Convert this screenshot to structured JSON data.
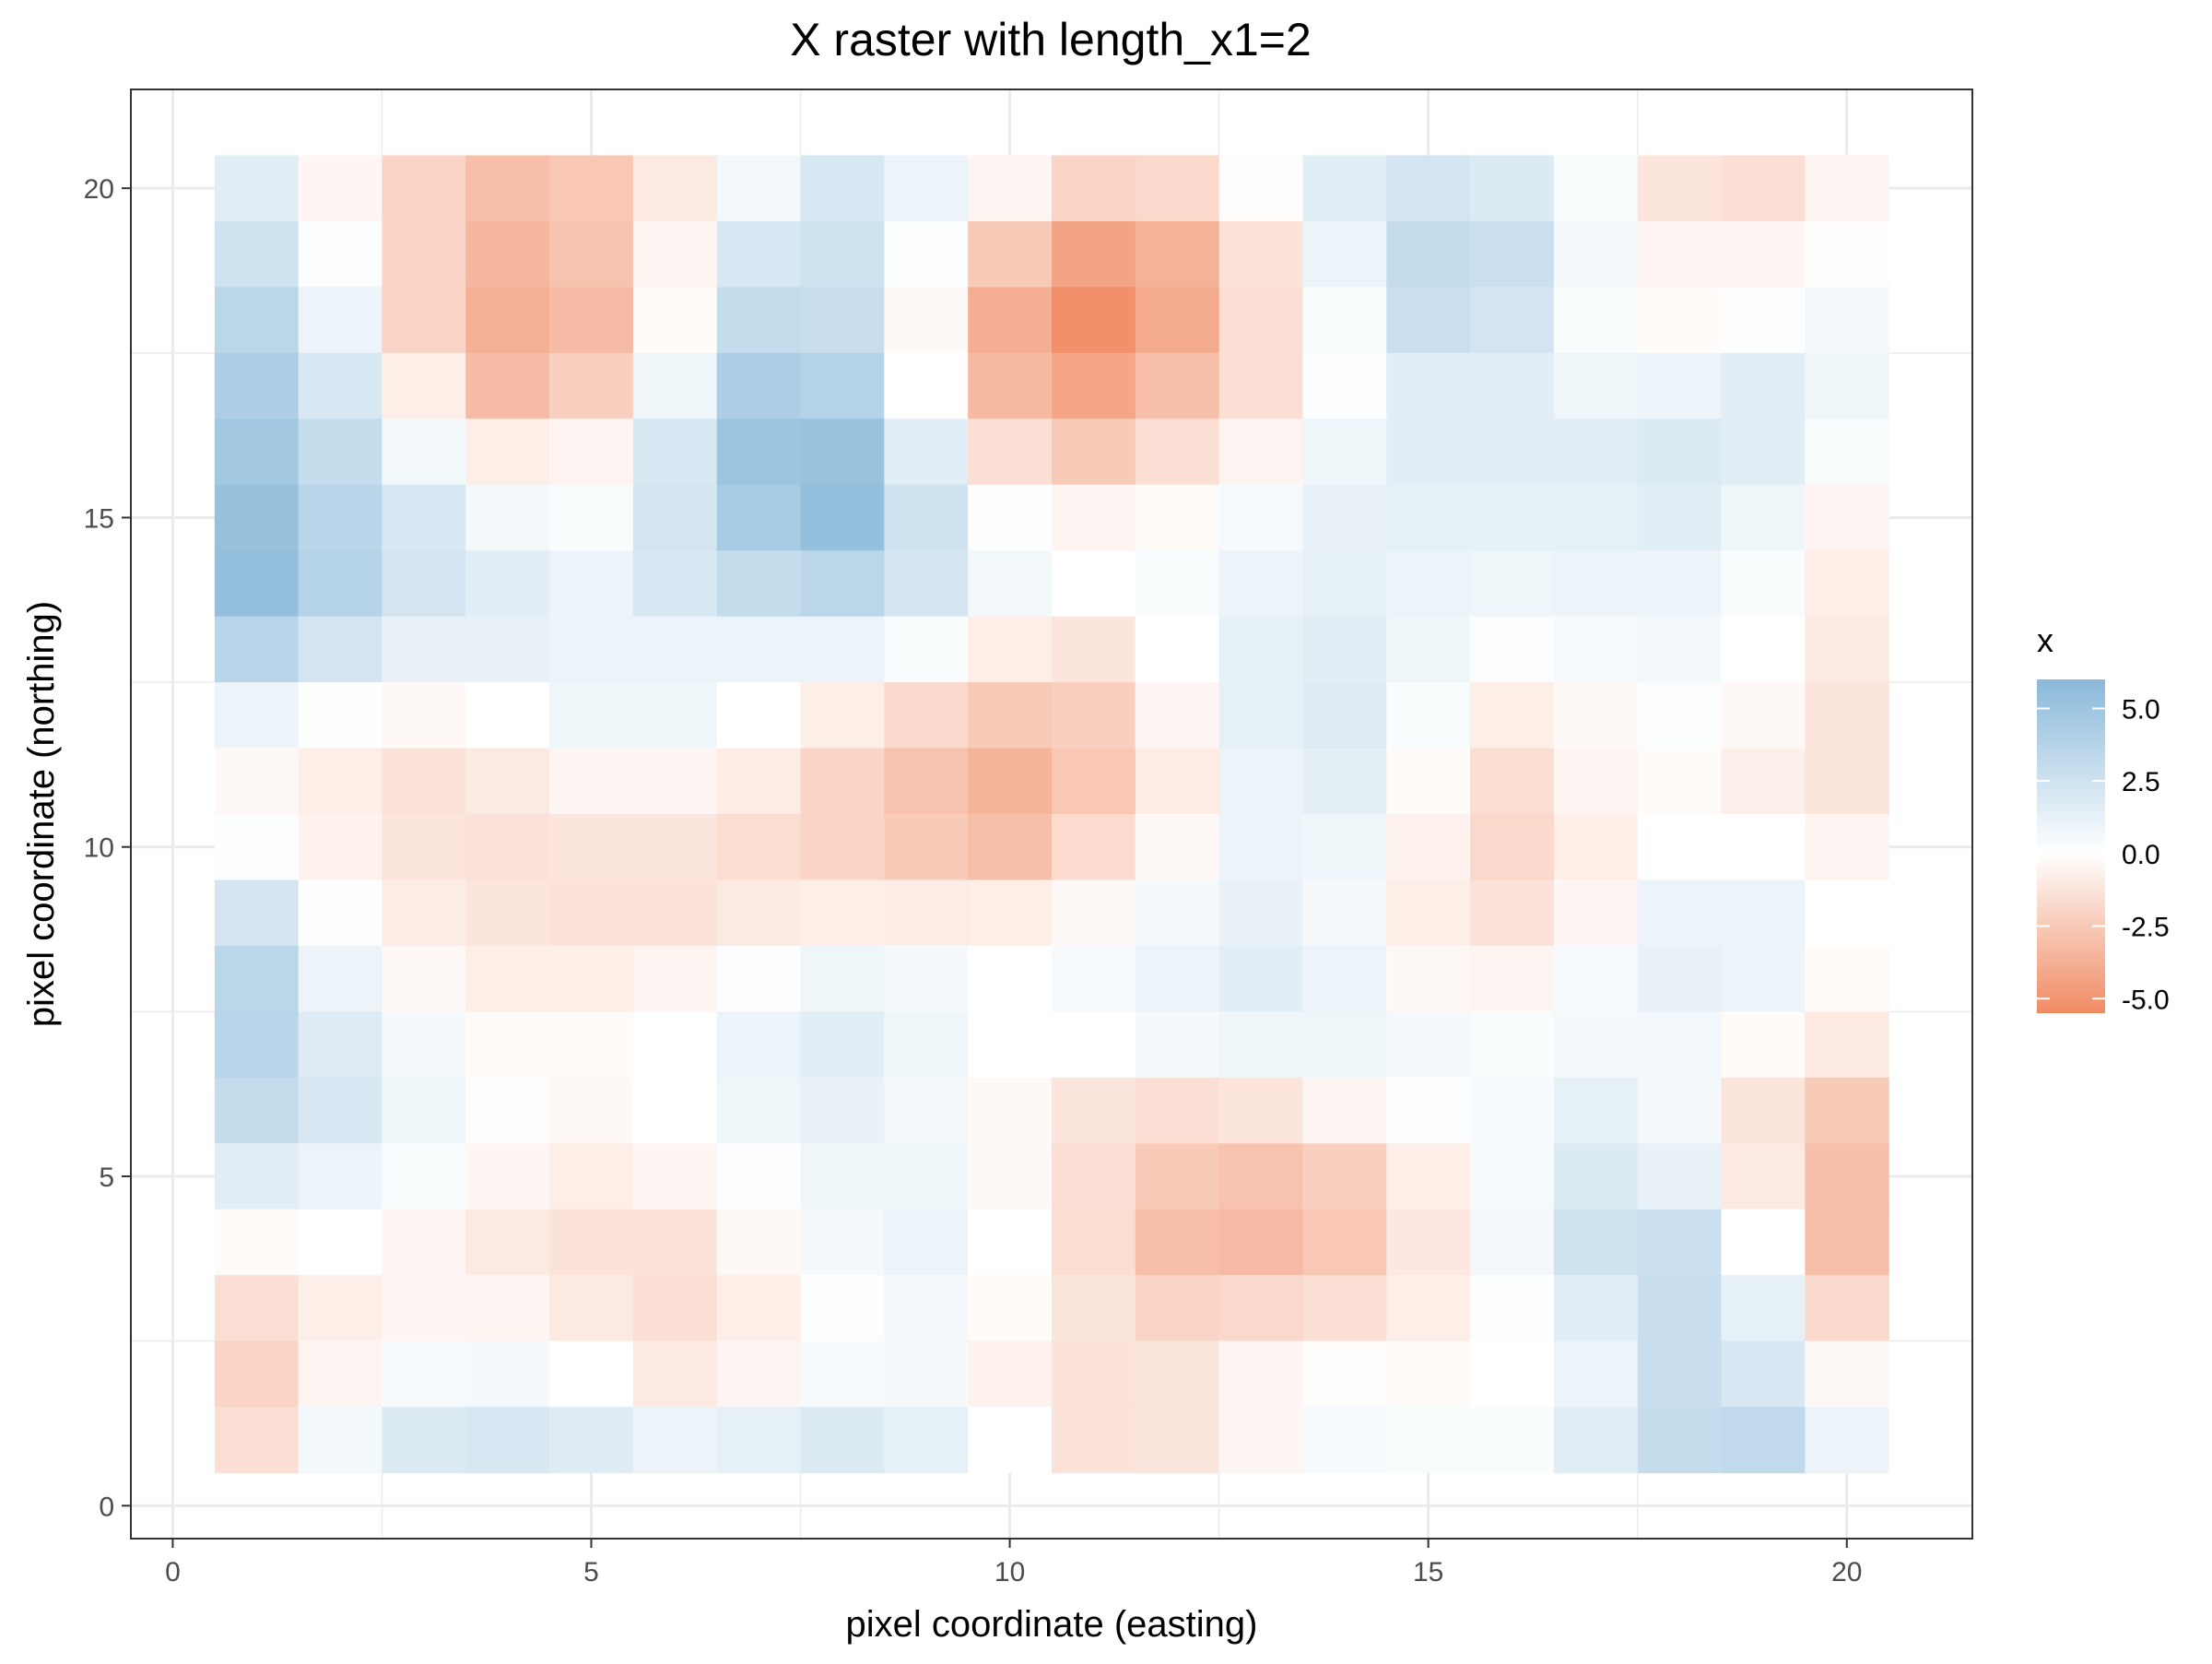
{
  "chart_data": {
    "type": "heatmap",
    "title": "X raster with length_x1=2",
    "xlabel": "pixel coordinate (easting)",
    "ylabel": "pixel coordinate (northing)",
    "xlim": [
      -0.5,
      21.5
    ],
    "ylim": [
      -0.5,
      21.5
    ],
    "xticks": [
      0,
      5,
      10,
      15,
      20
    ],
    "xtick_labels": [
      "0",
      "5",
      "10",
      "15",
      "20"
    ],
    "yticks": [
      0,
      5,
      10,
      15,
      20
    ],
    "ytick_labels": [
      "0",
      "5",
      "10",
      "15",
      "20"
    ],
    "grid": true,
    "x": [
      1,
      2,
      3,
      4,
      5,
      6,
      7,
      8,
      9,
      10,
      11,
      12,
      13,
      14,
      15,
      16,
      17,
      18,
      19,
      20
    ],
    "y": [
      1,
      2,
      3,
      4,
      5,
      6,
      7,
      8,
      9,
      10,
      11,
      12,
      13,
      14,
      15,
      16,
      17,
      18,
      19,
      20
    ],
    "z_rows_by_y_desc": [
      [
        1.5,
        -0.4,
        -2.0,
        -3.0,
        -2.6,
        -1.0,
        0.6,
        2.0,
        1.0,
        -0.5,
        -2.0,
        -1.8,
        -0.1,
        1.5,
        2.2,
        1.8,
        0.3,
        -1.2,
        -1.5,
        -0.5
      ],
      [
        2.5,
        0.2,
        -2.0,
        -3.4,
        -2.8,
        -0.5,
        2.0,
        2.5,
        0.2,
        -2.5,
        -4.3,
        -3.6,
        -1.3,
        1.0,
        3.0,
        2.7,
        0.6,
        -0.5,
        -0.5,
        -0.1
      ],
      [
        3.5,
        1.0,
        -2.0,
        -3.7,
        -3.2,
        -0.2,
        3.0,
        2.8,
        -0.3,
        -3.8,
        -5.2,
        -4.0,
        -1.5,
        0.3,
        2.7,
        2.2,
        0.3,
        -0.2,
        0.2,
        0.6
      ],
      [
        4.2,
        2.0,
        -0.8,
        -3.2,
        -2.2,
        0.8,
        4.2,
        3.8,
        -0.0,
        -3.3,
        -4.2,
        -3.0,
        -1.5,
        0.2,
        1.5,
        1.5,
        0.8,
        1.0,
        1.5,
        0.8
      ],
      [
        4.8,
        3.0,
        0.6,
        -0.8,
        -0.5,
        2.0,
        5.0,
        5.2,
        1.5,
        -1.5,
        -2.5,
        -1.5,
        -0.5,
        0.8,
        1.5,
        1.5,
        1.5,
        1.8,
        1.5,
        0.3
      ],
      [
        5.3,
        3.6,
        2.0,
        0.6,
        0.3,
        2.2,
        4.5,
        5.5,
        2.5,
        0.2,
        -0.5,
        -0.2,
        0.4,
        1.2,
        1.3,
        1.3,
        1.3,
        1.5,
        0.8,
        -0.5
      ],
      [
        5.5,
        3.8,
        2.2,
        1.5,
        1.0,
        2.0,
        3.0,
        3.5,
        2.2,
        0.6,
        0.0,
        0.3,
        1.0,
        1.3,
        1.0,
        0.8,
        1.0,
        1.0,
        0.3,
        -0.8
      ],
      [
        3.6,
        2.2,
        1.2,
        1.2,
        1.0,
        1.0,
        1.0,
        1.0,
        0.3,
        -0.8,
        -1.2,
        0.0,
        1.3,
        1.5,
        0.8,
        0.2,
        0.4,
        0.6,
        0.0,
        -1.0
      ],
      [
        1.0,
        0.1,
        -0.3,
        0.0,
        0.8,
        0.8,
        0.0,
        -0.8,
        -1.8,
        -2.5,
        -2.2,
        -0.4,
        1.3,
        1.7,
        0.3,
        -0.8,
        -0.3,
        0.2,
        -0.3,
        -1.2
      ],
      [
        -0.3,
        -0.8,
        -1.3,
        -1.0,
        -0.4,
        -0.4,
        -0.9,
        -2.0,
        -2.8,
        -3.5,
        -2.6,
        -0.9,
        1.0,
        1.4,
        -0.2,
        -1.6,
        -0.5,
        -0.2,
        -0.7,
        -1.2
      ],
      [
        0.2,
        -0.6,
        -1.2,
        -1.4,
        -1.2,
        -1.2,
        -1.6,
        -2.0,
        -2.5,
        -3.0,
        -1.7,
        -0.3,
        1.0,
        0.8,
        -0.6,
        -1.8,
        -0.8,
        0.0,
        0.0,
        -0.5
      ],
      [
        2.2,
        0.2,
        -0.9,
        -1.2,
        -1.3,
        -1.3,
        -1.0,
        -0.8,
        -0.9,
        -0.8,
        -0.3,
        0.5,
        1.2,
        0.5,
        -0.8,
        -1.4,
        -0.4,
        1.0,
        1.0,
        0.0
      ],
      [
        3.5,
        1.0,
        -0.3,
        -0.8,
        -0.8,
        -0.5,
        0.2,
        0.8,
        0.5,
        0.0,
        0.4,
        1.0,
        1.5,
        1.0,
        -0.3,
        -0.5,
        0.4,
        1.2,
        1.0,
        -0.2
      ],
      [
        3.6,
        1.7,
        0.5,
        -0.2,
        -0.2,
        0.0,
        1.0,
        1.5,
        0.8,
        0.0,
        0.0,
        0.5,
        0.8,
        0.8,
        0.5,
        0.3,
        0.5,
        0.7,
        -0.2,
        -1.0
      ],
      [
        3.0,
        2.0,
        0.8,
        -0.1,
        -0.3,
        0.0,
        0.8,
        1.2,
        0.6,
        -0.3,
        -1.2,
        -1.5,
        -1.2,
        -0.5,
        0.2,
        0.4,
        1.3,
        0.5,
        -1.2,
        -2.5
      ],
      [
        1.5,
        1.0,
        0.3,
        -0.4,
        -0.8,
        -0.4,
        0.2,
        0.8,
        0.8,
        -0.3,
        -1.5,
        -2.5,
        -2.8,
        -2.2,
        -0.8,
        0.4,
        1.8,
        1.2,
        -1.0,
        -3.0
      ],
      [
        -0.2,
        0.0,
        -0.4,
        -1.0,
        -1.3,
        -1.3,
        -0.3,
        0.5,
        1.0,
        0.0,
        -1.6,
        -3.0,
        -3.2,
        -2.6,
        -1.1,
        0.6,
        2.5,
        2.6,
        0.0,
        -3.0
      ],
      [
        -1.5,
        -0.8,
        -0.4,
        -0.5,
        -1.0,
        -1.5,
        -0.8,
        0.2,
        0.5,
        -0.2,
        -1.2,
        -2.0,
        -1.8,
        -1.5,
        -0.8,
        0.2,
        1.5,
        2.8,
        1.3,
        -1.8
      ],
      [
        -2.0,
        -0.5,
        0.4,
        0.5,
        0.0,
        -1.0,
        -0.5,
        0.4,
        0.5,
        -0.6,
        -1.3,
        -1.2,
        -0.4,
        -0.1,
        -0.2,
        0.0,
        1.0,
        2.8,
        2.0,
        -0.3
      ],
      [
        -1.5,
        0.6,
        1.8,
        2.0,
        1.6,
        1.0,
        1.3,
        1.8,
        1.3,
        0.0,
        -1.3,
        -1.2,
        -0.4,
        0.4,
        0.3,
        0.3,
        1.5,
        3.0,
        3.2,
        1.0
      ]
    ],
    "legend": {
      "title": "x",
      "placement": "right",
      "breaks": [
        5.0,
        2.5,
        0.0,
        -2.5,
        -5.0
      ],
      "labels": [
        "5.0",
        "2.5",
        "0.0",
        "-2.5",
        "-5.0"
      ],
      "limits": [
        -5.5,
        6.0
      ],
      "high_color": "#8AB9DA",
      "mid_color": "#FFFFFF",
      "low_color": "#F08A62"
    }
  }
}
